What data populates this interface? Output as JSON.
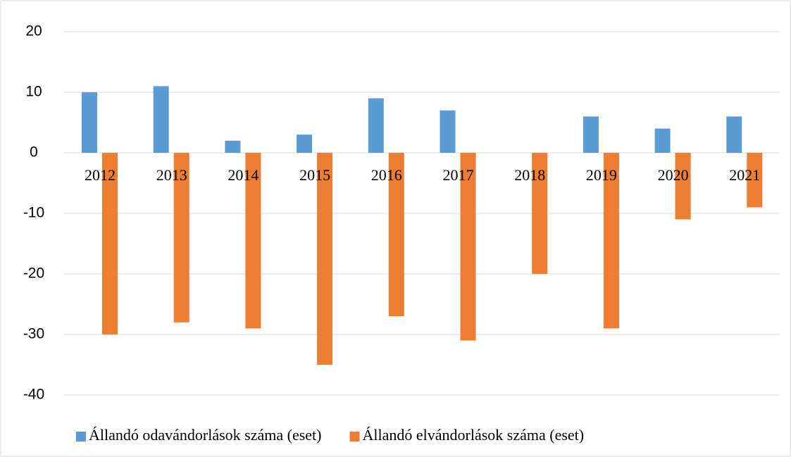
{
  "chart_data": {
    "type": "bar",
    "categories": [
      "2012",
      "2013",
      "2014",
      "2015",
      "2016",
      "2017",
      "2018",
      "2019",
      "2020",
      "2021"
    ],
    "series": [
      {
        "name": "Állandó odavándorlások száma (eset)",
        "color": "#5b9bd5",
        "values": [
          10,
          11,
          2,
          3,
          9,
          7,
          0,
          6,
          4,
          6
        ]
      },
      {
        "name": "Állandó elvándorlások száma (eset)",
        "color": "#ed7d31",
        "values": [
          -30,
          -28,
          -29,
          -35,
          -27,
          -31,
          -20,
          -29,
          -11,
          -9
        ]
      }
    ],
    "ylim": [
      -40,
      20
    ],
    "yticks": [
      -40,
      -30,
      -20,
      -10,
      0,
      10,
      20
    ],
    "grid": true,
    "legend": "bottom"
  }
}
